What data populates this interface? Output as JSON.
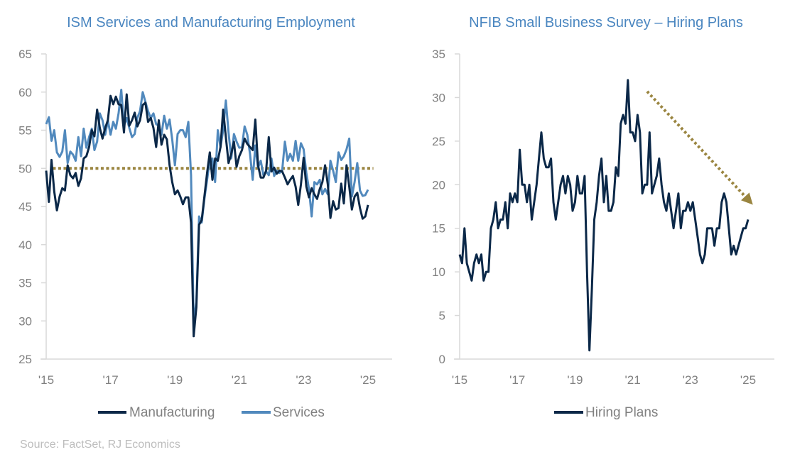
{
  "source": "Source: FactSet, RJ Economics",
  "colors": {
    "manufacturing": "#0b2848",
    "services": "#5189bd",
    "hiring": "#0b2848",
    "annotation": "#9a8540",
    "title": "#4a86c0",
    "axis_text": "#808080"
  },
  "chart_data": [
    {
      "type": "line",
      "title": "ISM Services and Manufacturing Employment",
      "x_start": "2015-01",
      "x_frequency": "monthly",
      "xticks": [
        "'15",
        "'17",
        "'19",
        "'21",
        "'23",
        "'25"
      ],
      "ylim": [
        25,
        65
      ],
      "yticks": [
        25,
        30,
        35,
        40,
        45,
        50,
        55,
        60,
        65
      ],
      "grid": false,
      "legend": "bottom",
      "reference_line": {
        "y": 50,
        "style": "dotted"
      },
      "series": [
        {
          "name": "Manufacturing",
          "values": [
            49.7,
            45.6,
            51.1,
            47,
            44.5,
            46.3,
            47.4,
            47.1,
            50.4,
            49.1,
            48.7,
            49.4,
            47.7,
            48.7,
            51.3,
            51.6,
            52.8,
            55,
            54.2,
            57.7,
            55.3,
            53.9,
            55.3,
            56.3,
            59.5,
            58.4,
            59.4,
            58.4,
            58.3,
            54.7,
            59.7,
            55.6,
            56.3,
            57.3,
            55.5,
            56.3,
            58.3,
            58.6,
            56.1,
            56.6,
            55.3,
            52.8,
            56.3,
            53.1,
            54.4,
            53.8,
            50.4,
            48.2,
            46.6,
            47.1,
            46.3,
            45.3,
            46.2,
            46.2,
            42.9,
            28,
            31.8,
            42.6,
            43.2,
            46.3,
            49.4,
            52.1,
            48.5,
            51.3,
            51,
            52.8,
            57.7,
            54.1,
            50.7,
            51.9,
            53.5,
            50.2,
            51.6,
            52.4,
            53.9,
            53.2,
            52.8,
            52.4,
            56.4,
            50.4,
            48.8,
            48.8,
            49.7,
            54.1,
            49.6,
            50.1,
            49.3,
            49.7,
            49.6,
            48.8,
            47.9,
            48.5,
            49,
            47.6,
            45.2,
            47.9,
            51.4,
            47.6,
            46.2,
            47.4,
            46.6,
            46,
            47.3,
            48.2,
            50.4,
            47.9,
            43.5,
            45.7,
            44.6,
            44.8,
            48,
            45.4,
            50.4,
            47.6,
            44.6,
            46.3,
            46.8,
            44.8,
            43.4,
            43.7,
            45.2
          ]
        },
        {
          "name": "Services",
          "values": [
            55.8,
            56.7,
            53.6,
            55,
            52.1,
            51.5,
            52.2,
            55,
            50.7,
            52.2,
            51.8,
            51,
            54.1,
            51.6,
            55.2,
            52.7,
            54.1,
            55.2,
            52.4,
            53.5,
            57.2,
            56.3,
            54.4,
            56.3,
            54.4,
            56.1,
            55.2,
            57.2,
            60.3,
            55.6,
            56.6,
            55.3,
            54.1,
            54.5,
            56.6,
            57.5,
            60,
            58.7,
            57.5,
            56.6,
            57.2,
            55.8,
            55.6,
            54.4,
            56.9,
            55.2,
            56.4,
            53.8,
            50.4,
            54.5,
            55,
            55,
            54.1,
            56.1,
            49.1,
            29.9,
            32.4,
            43.7,
            42.9,
            46,
            48.5,
            51.1,
            51.3,
            48.2,
            55,
            52.8,
            55,
            58.9,
            54.7,
            51.3,
            54.5,
            53.5,
            52.7,
            52.8,
            55.5,
            54.4,
            51.9,
            48.5,
            53,
            50.1,
            51,
            49.1,
            49.6,
            49.1,
            51.3,
            49,
            49.7,
            49.4,
            49.7,
            53.5,
            51,
            51.9,
            51,
            53.6,
            51,
            53.3,
            52.5,
            49.4,
            47.3,
            43.7,
            48.2,
            47.9,
            48.5,
            46.6,
            47.3,
            46.6,
            51,
            49.7,
            48.2,
            52.1,
            51.1,
            51.6,
            52.5,
            53.9,
            46.3,
            48.2,
            50.7,
            47.1,
            46.4,
            46.5,
            47.2
          ]
        }
      ]
    },
    {
      "type": "line",
      "title": "NFIB Small Business Survey – Hiring Plans",
      "x_start": "2015-01",
      "x_frequency": "monthly",
      "xticks": [
        "'15",
        "'17",
        "'19",
        "'21",
        "'23",
        "'25"
      ],
      "ylim": [
        0,
        35
      ],
      "yticks": [
        0,
        5,
        10,
        15,
        20,
        25,
        30,
        35
      ],
      "grid": false,
      "legend": "bottom",
      "annotation": {
        "type": "dotted-arrow",
        "from": {
          "x": "2021-07",
          "y": 30.7
        },
        "to": {
          "x": "2025-03",
          "y": 17.7
        }
      },
      "series": [
        {
          "name": "Hiring Plans",
          "values": [
            12,
            11,
            15,
            11,
            10,
            9,
            11,
            12,
            11,
            12,
            9,
            10,
            10,
            15,
            16,
            18,
            15,
            16,
            16,
            18,
            15,
            19,
            18,
            19,
            18,
            24,
            20,
            20,
            18,
            20,
            16,
            18,
            20,
            23,
            26,
            23,
            22,
            22,
            23,
            18,
            16,
            18,
            20,
            21,
            19,
            21,
            20,
            17,
            18,
            21,
            19,
            19,
            21,
            10,
            1,
            8,
            16,
            18,
            21,
            23,
            18,
            21,
            17,
            17,
            18,
            22,
            21,
            27,
            28,
            27,
            32,
            26,
            26,
            25,
            28,
            26,
            19,
            20,
            20,
            26,
            19,
            20,
            21,
            23,
            20,
            18,
            17,
            19,
            17,
            15,
            17,
            19,
            15,
            17,
            17,
            18,
            17,
            18,
            16,
            14,
            12,
            11,
            12,
            15,
            15,
            15,
            13,
            15,
            15,
            18,
            19,
            18,
            15,
            12,
            13,
            12,
            13,
            14,
            15,
            15,
            16
          ]
        }
      ]
    }
  ]
}
